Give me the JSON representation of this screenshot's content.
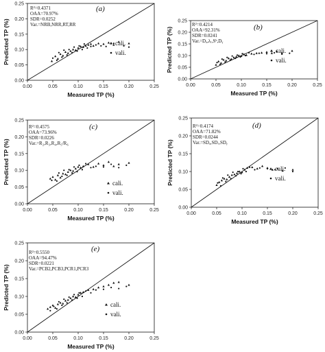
{
  "chart_data": [
    {
      "type": "scatter",
      "panel": "(a)",
      "stats": [
        "R²=0.4371",
        "OAA=70.97%",
        "SDR=0.0252",
        "Var.=NRB,NRR,RT,RR"
      ],
      "xlabel": "Measured TP (%)",
      "ylabel": "Predicted TP (%)",
      "xlim": [
        0,
        0.25
      ],
      "ylim": [
        0,
        0.25
      ],
      "xticks": [
        "0.00",
        "0.05",
        "0.10",
        "0.15",
        "0.20",
        "0.25"
      ],
      "yticks": [
        "0.00",
        "0.05",
        "0.10",
        "0.15",
        "0.20",
        "0.25"
      ],
      "series": [
        {
          "name": "cali.",
          "marker": "triangle",
          "points": [
            [
              0.048,
              0.062
            ],
            [
              0.055,
              0.078
            ],
            [
              0.06,
              0.07
            ],
            [
              0.065,
              0.085
            ],
            [
              0.07,
              0.08
            ],
            [
              0.075,
              0.092
            ],
            [
              0.08,
              0.088
            ],
            [
              0.085,
              0.095
            ],
            [
              0.09,
              0.1
            ],
            [
              0.095,
              0.098
            ],
            [
              0.1,
              0.105
            ],
            [
              0.105,
              0.11
            ],
            [
              0.11,
              0.108
            ],
            [
              0.115,
              0.112
            ],
            [
              0.12,
              0.115
            ],
            [
              0.125,
              0.118
            ],
            [
              0.13,
              0.112
            ],
            [
              0.14,
              0.12
            ],
            [
              0.15,
              0.118
            ],
            [
              0.16,
              0.122
            ],
            [
              0.17,
              0.115
            ],
            [
              0.18,
              0.125
            ],
            [
              0.2,
              0.12
            ]
          ]
        },
        {
          "name": "vali.",
          "marker": "dot",
          "points": [
            [
              0.05,
              0.072
            ],
            [
              0.058,
              0.065
            ],
            [
              0.062,
              0.09
            ],
            [
              0.068,
              0.075
            ],
            [
              0.072,
              0.098
            ],
            [
              0.078,
              0.082
            ],
            [
              0.082,
              0.1
            ],
            [
              0.088,
              0.09
            ],
            [
              0.092,
              0.108
            ],
            [
              0.098,
              0.095
            ],
            [
              0.102,
              0.112
            ],
            [
              0.108,
              0.1
            ],
            [
              0.112,
              0.118
            ],
            [
              0.118,
              0.105
            ],
            [
              0.125,
              0.11
            ],
            [
              0.135,
              0.115
            ],
            [
              0.145,
              0.112
            ],
            [
              0.155,
              0.11
            ],
            [
              0.17,
              0.12
            ],
            [
              0.19,
              0.112
            ],
            [
              0.2,
              0.108
            ]
          ]
        }
      ]
    },
    {
      "type": "scatter",
      "panel": "(b)",
      "stats": [
        "R²=0.4214",
        "OAA=92.31%",
        "SDR=0.0241",
        "Var.=Dₐ,λᵣ,Sᵇ,Dᵧ"
      ],
      "xlabel": "Measured TP (%)",
      "ylabel": "Predicted TP (%)",
      "xlim": [
        0,
        0.25
      ],
      "ylim": [
        0,
        0.25
      ],
      "xticks": [
        "0.00",
        "0.05",
        "0.10",
        "0.15",
        "0.20",
        "0.25"
      ],
      "yticks": [
        "0.00",
        "0.05",
        "0.10",
        "0.15",
        "0.20",
        "0.25"
      ],
      "series": [
        {
          "name": "cali.",
          "marker": "triangle",
          "points": [
            [
              0.05,
              0.06
            ],
            [
              0.055,
              0.075
            ],
            [
              0.06,
              0.068
            ],
            [
              0.065,
              0.082
            ],
            [
              0.07,
              0.078
            ],
            [
              0.075,
              0.088
            ],
            [
              0.08,
              0.085
            ],
            [
              0.085,
              0.092
            ],
            [
              0.09,
              0.095
            ],
            [
              0.095,
              0.1
            ],
            [
              0.1,
              0.098
            ],
            [
              0.105,
              0.105
            ],
            [
              0.11,
              0.102
            ],
            [
              0.12,
              0.108
            ],
            [
              0.13,
              0.11
            ],
            [
              0.14,
              0.112
            ],
            [
              0.15,
              0.115
            ],
            [
              0.16,
              0.11
            ],
            [
              0.17,
              0.118
            ],
            [
              0.18,
              0.112
            ],
            [
              0.2,
              0.12
            ]
          ]
        },
        {
          "name": "vali.",
          "marker": "dot",
          "points": [
            [
              0.052,
              0.07
            ],
            [
              0.058,
              0.062
            ],
            [
              0.062,
              0.085
            ],
            [
              0.068,
              0.072
            ],
            [
              0.072,
              0.092
            ],
            [
              0.078,
              0.08
            ],
            [
              0.082,
              0.098
            ],
            [
              0.088,
              0.088
            ],
            [
              0.092,
              0.102
            ],
            [
              0.098,
              0.094
            ],
            [
              0.102,
              0.108
            ],
            [
              0.108,
              0.1
            ],
            [
              0.115,
              0.112
            ],
            [
              0.125,
              0.105
            ],
            [
              0.135,
              0.11
            ],
            [
              0.15,
              0.108
            ],
            [
              0.165,
              0.112
            ],
            [
              0.18,
              0.106
            ],
            [
              0.195,
              0.11
            ]
          ]
        }
      ]
    },
    {
      "type": "scatter",
      "panel": "(c)",
      "stats": [
        "R²=0.4575",
        "OAA=73.96%",
        "SDR=0.0226",
        "Var.=R₂,R₃,R₄,R₅/R₆"
      ],
      "xlabel": "Measured TP (%)",
      "ylabel": "Predicted TP (%)",
      "xlim": [
        0,
        0.25
      ],
      "ylim": [
        0,
        0.25
      ],
      "xticks": [
        "0.00",
        "0.05",
        "0.10",
        "0.15",
        "0.20",
        "0.25"
      ],
      "yticks": [
        "0.00",
        "0.05",
        "0.10",
        "0.15",
        "0.20",
        "0.25"
      ],
      "series": [
        {
          "name": "cali.",
          "marker": "triangle",
          "points": [
            [
              0.045,
              0.075
            ],
            [
              0.05,
              0.08
            ],
            [
              0.055,
              0.072
            ],
            [
              0.06,
              0.085
            ],
            [
              0.065,
              0.078
            ],
            [
              0.07,
              0.09
            ],
            [
              0.075,
              0.088
            ],
            [
              0.08,
              0.095
            ],
            [
              0.085,
              0.1
            ],
            [
              0.09,
              0.098
            ],
            [
              0.095,
              0.105
            ],
            [
              0.1,
              0.11
            ],
            [
              0.105,
              0.108
            ],
            [
              0.11,
              0.112
            ],
            [
              0.12,
              0.118
            ],
            [
              0.13,
              0.11
            ],
            [
              0.14,
              0.12
            ],
            [
              0.15,
              0.115
            ],
            [
              0.16,
              0.125
            ],
            [
              0.17,
              0.112
            ],
            [
              0.18,
              0.118
            ],
            [
              0.2,
              0.122
            ]
          ]
        },
        {
          "name": "vali.",
          "marker": "dot",
          "points": [
            [
              0.048,
              0.07
            ],
            [
              0.058,
              0.068
            ],
            [
              0.062,
              0.092
            ],
            [
              0.068,
              0.082
            ],
            [
              0.072,
              0.1
            ],
            [
              0.078,
              0.085
            ],
            [
              0.082,
              0.102
            ],
            [
              0.088,
              0.092
            ],
            [
              0.092,
              0.11
            ],
            [
              0.098,
              0.096
            ],
            [
              0.102,
              0.115
            ],
            [
              0.108,
              0.102
            ],
            [
              0.115,
              0.12
            ],
            [
              0.125,
              0.108
            ],
            [
              0.135,
              0.112
            ],
            [
              0.15,
              0.11
            ],
            [
              0.165,
              0.118
            ],
            [
              0.18,
              0.108
            ],
            [
              0.195,
              0.115
            ]
          ]
        }
      ]
    },
    {
      "type": "scatter",
      "panel": "(d)",
      "stats": [
        "R²=0.4174",
        "OAA=71.82%",
        "SDR=0.0244",
        "Var.=SDₐ,SDᵣ,SDᵧ"
      ],
      "xlabel": "Measured TP (%)",
      "ylabel": "Predicted TP (%)",
      "xlim": [
        0,
        0.25
      ],
      "ylim": [
        0,
        0.25
      ],
      "xticks": [
        "0.00",
        "0.05",
        "0.10",
        "0.15",
        "0.20",
        "0.25"
      ],
      "yticks": [
        "0.00",
        "0.05",
        "0.10",
        "0.15",
        "0.20",
        "0.25"
      ],
      "series": [
        {
          "name": "cali.",
          "marker": "triangle",
          "points": [
            [
              0.05,
              0.062
            ],
            [
              0.055,
              0.07
            ],
            [
              0.06,
              0.075
            ],
            [
              0.065,
              0.08
            ],
            [
              0.07,
              0.078
            ],
            [
              0.075,
              0.085
            ],
            [
              0.08,
              0.09
            ],
            [
              0.085,
              0.092
            ],
            [
              0.09,
              0.095
            ],
            [
              0.095,
              0.1
            ],
            [
              0.1,
              0.098
            ],
            [
              0.105,
              0.105
            ],
            [
              0.11,
              0.11
            ],
            [
              0.12,
              0.112
            ],
            [
              0.13,
              0.108
            ],
            [
              0.14,
              0.115
            ],
            [
              0.15,
              0.11
            ],
            [
              0.16,
              0.105
            ],
            [
              0.17,
              0.108
            ],
            [
              0.18,
              0.102
            ],
            [
              0.2,
              0.105
            ]
          ]
        },
        {
          "name": "vali.",
          "marker": "dot",
          "points": [
            [
              0.052,
              0.068
            ],
            [
              0.058,
              0.06
            ],
            [
              0.062,
              0.082
            ],
            [
              0.068,
              0.072
            ],
            [
              0.072,
              0.09
            ],
            [
              0.078,
              0.08
            ],
            [
              0.082,
              0.098
            ],
            [
              0.088,
              0.088
            ],
            [
              0.092,
              0.1
            ],
            [
              0.098,
              0.094
            ],
            [
              0.102,
              0.108
            ],
            [
              0.108,
              0.1
            ],
            [
              0.115,
              0.112
            ],
            [
              0.125,
              0.105
            ],
            [
              0.135,
              0.11
            ],
            [
              0.15,
              0.108
            ],
            [
              0.165,
              0.105
            ],
            [
              0.185,
              0.11
            ],
            [
              0.2,
              0.1
            ]
          ]
        }
      ]
    },
    {
      "type": "scatter",
      "panel": "(e)",
      "stats": [
        "R²=0.5550",
        "OAA=94.47%",
        "SDR=0.0221",
        "Var.=PCB2,PCB3,PCR1,PCR3"
      ],
      "xlabel": "Measured TP (%)",
      "ylabel": "Predicted TP (%)",
      "xlim": [
        0,
        0.25
      ],
      "ylim": [
        0,
        0.25
      ],
      "xticks": [
        "0.00",
        "0.05",
        "0.10",
        "0.15",
        "0.20",
        "0.25"
      ],
      "yticks": [
        "0.00",
        "0.05",
        "0.10",
        "0.15",
        "0.20",
        "0.25"
      ],
      "series": [
        {
          "name": "cali.",
          "marker": "triangle",
          "points": [
            [
              0.04,
              0.065
            ],
            [
              0.045,
              0.07
            ],
            [
              0.05,
              0.075
            ],
            [
              0.055,
              0.068
            ],
            [
              0.06,
              0.078
            ],
            [
              0.065,
              0.082
            ],
            [
              0.07,
              0.08
            ],
            [
              0.075,
              0.088
            ],
            [
              0.08,
              0.09
            ],
            [
              0.085,
              0.095
            ],
            [
              0.09,
              0.1
            ],
            [
              0.095,
              0.098
            ],
            [
              0.1,
              0.105
            ],
            [
              0.105,
              0.11
            ],
            [
              0.11,
              0.112
            ],
            [
              0.12,
              0.118
            ],
            [
              0.13,
              0.12
            ],
            [
              0.14,
              0.125
            ],
            [
              0.15,
              0.128
            ],
            [
              0.16,
              0.132
            ],
            [
              0.17,
              0.138
            ],
            [
              0.18,
              0.14
            ],
            [
              0.2,
              0.132
            ]
          ]
        },
        {
          "name": "vali.",
          "marker": "dot",
          "points": [
            [
              0.045,
              0.06
            ],
            [
              0.052,
              0.072
            ],
            [
              0.058,
              0.065
            ],
            [
              0.062,
              0.085
            ],
            [
              0.068,
              0.075
            ],
            [
              0.072,
              0.092
            ],
            [
              0.078,
              0.082
            ],
            [
              0.082,
              0.098
            ],
            [
              0.088,
              0.09
            ],
            [
              0.092,
              0.105
            ],
            [
              0.098,
              0.095
            ],
            [
              0.102,
              0.11
            ],
            [
              0.108,
              0.1
            ],
            [
              0.115,
              0.115
            ],
            [
              0.125,
              0.11
            ],
            [
              0.135,
              0.118
            ],
            [
              0.15,
              0.12
            ],
            [
              0.165,
              0.125
            ],
            [
              0.18,
              0.122
            ],
            [
              0.195,
              0.128
            ]
          ]
        }
      ]
    }
  ]
}
